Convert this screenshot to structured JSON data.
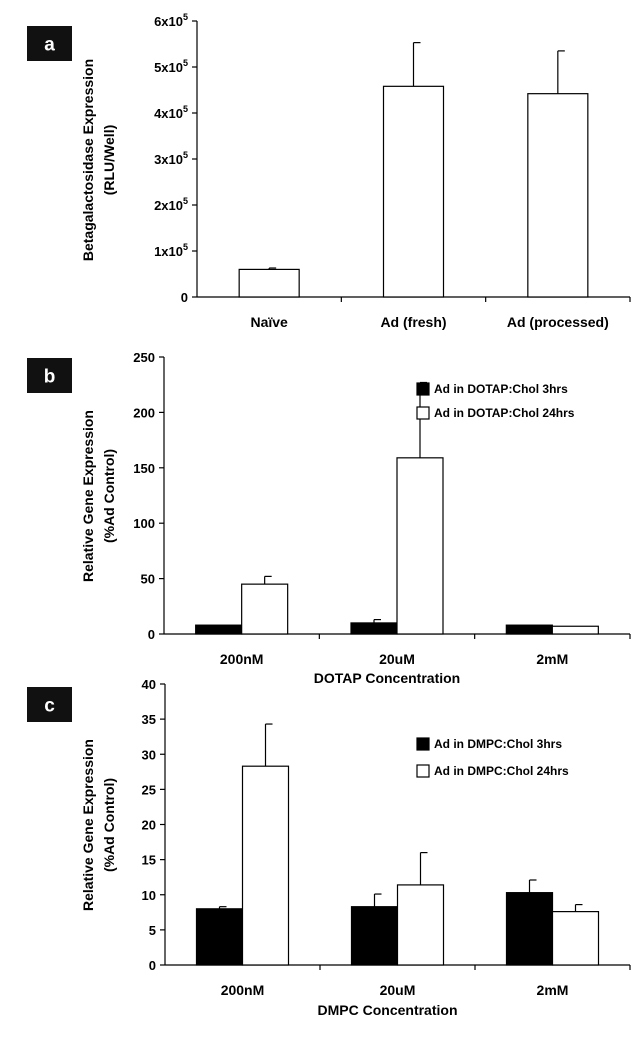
{
  "chart_data": [
    {
      "panel": "a",
      "type": "bar",
      "categories": [
        "Naïve",
        "Ad (fresh)",
        "Ad (processed)"
      ],
      "series": [
        {
          "values": [
            60000,
            458000,
            442000
          ],
          "errors": [
            3000,
            95000,
            93000
          ],
          "color": "#ffffff"
        }
      ],
      "ylabel": [
        "Betagalactosidase Expression",
        "(RLU/Well)"
      ],
      "xlabel": "",
      "ylim": [
        0,
        600000
      ],
      "yticks": [
        {
          "value": 0,
          "base": "0",
          "exp": ""
        },
        {
          "value": 100000,
          "base": "1x10",
          "exp": "5"
        },
        {
          "value": 200000,
          "base": "2x10",
          "exp": "5"
        },
        {
          "value": 300000,
          "base": "3x10",
          "exp": "5"
        },
        {
          "value": 400000,
          "base": "4x10",
          "exp": "5"
        },
        {
          "value": 500000,
          "base": "5x10",
          "exp": "5"
        },
        {
          "value": 600000,
          "base": "6x10",
          "exp": "5"
        }
      ],
      "grid": false
    },
    {
      "panel": "b",
      "type": "bar",
      "categories": [
        "200nM",
        "20uM",
        "2mM"
      ],
      "series": [
        {
          "name": "Ad in DOTAP:Chol 3hrs",
          "values": [
            8,
            10,
            8
          ],
          "errors": [
            0,
            3,
            0
          ],
          "color": "#000000"
        },
        {
          "name": "Ad in DOTAP:Chol 24hrs",
          "values": [
            45,
            159,
            7
          ],
          "errors": [
            7,
            68,
            0
          ],
          "color": "#ffffff"
        }
      ],
      "ylabel": [
        "Relative Gene Expression",
        "(%Ad Control)"
      ],
      "xlabel": "DOTAP Concentration",
      "ylim": [
        0,
        250
      ],
      "yticks": [
        {
          "value": 0,
          "base": "0",
          "exp": ""
        },
        {
          "value": 50,
          "base": "50",
          "exp": ""
        },
        {
          "value": 100,
          "base": "100",
          "exp": ""
        },
        {
          "value": 150,
          "base": "150",
          "exp": ""
        },
        {
          "value": 200,
          "base": "200",
          "exp": ""
        },
        {
          "value": 250,
          "base": "250",
          "exp": ""
        }
      ],
      "legend": "top-right",
      "grid": false
    },
    {
      "panel": "c",
      "type": "bar",
      "categories": [
        "200nM",
        "20uM",
        "2mM"
      ],
      "series": [
        {
          "name": "Ad in DMPC:Chol 3hrs",
          "values": [
            8,
            8.3,
            10.3
          ],
          "errors": [
            0.3,
            1.8,
            1.8
          ],
          "color": "#000000"
        },
        {
          "name": "Ad in DMPC:Chol 24hrs",
          "values": [
            28.3,
            11.4,
            7.6
          ],
          "errors": [
            6,
            4.6,
            1
          ],
          "color": "#ffffff"
        }
      ],
      "ylabel": [
        "Relative Gene Expression",
        "(%Ad Control)"
      ],
      "xlabel": "DMPC Concentration",
      "ylim": [
        0,
        40
      ],
      "yticks": [
        {
          "value": 0,
          "base": "0",
          "exp": ""
        },
        {
          "value": 5,
          "base": "5",
          "exp": ""
        },
        {
          "value": 10,
          "base": "10",
          "exp": ""
        },
        {
          "value": 15,
          "base": "15",
          "exp": ""
        },
        {
          "value": 20,
          "base": "20",
          "exp": ""
        },
        {
          "value": 25,
          "base": "25",
          "exp": ""
        },
        {
          "value": 30,
          "base": "30",
          "exp": ""
        },
        {
          "value": 35,
          "base": "35",
          "exp": ""
        },
        {
          "value": 40,
          "base": "40",
          "exp": ""
        }
      ],
      "legend": "top-right",
      "grid": false
    }
  ]
}
